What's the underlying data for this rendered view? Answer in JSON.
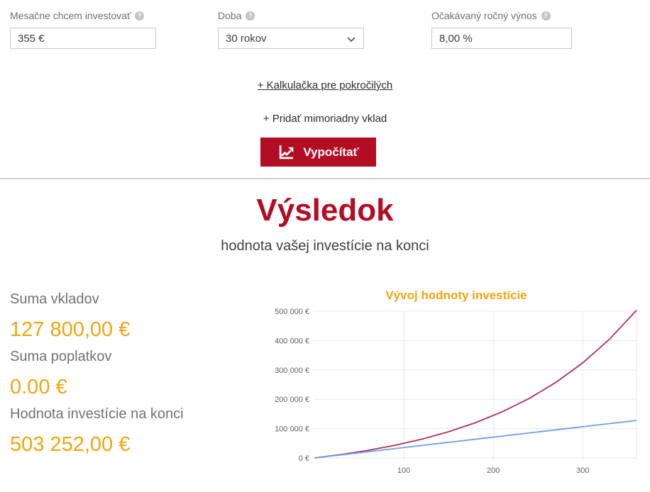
{
  "form": {
    "fields": [
      {
        "label": "Mesačne chcem investovať",
        "value": "355 €"
      },
      {
        "label": "Doba",
        "value": "30 rokov"
      },
      {
        "label": "Očakávaný ročný výnos",
        "value": "8,00 %"
      }
    ],
    "help_icon": "?",
    "advanced_link": "+ Kalkulačka pre pokročilých",
    "extra_deposit_label": "+ Pridať mimoriadny vklad",
    "calculate_label": "Vypočítať"
  },
  "result": {
    "title": "Výsledok",
    "subtitle": "hodnota vašej investície na konci",
    "stats": [
      {
        "label": "Suma vkladov",
        "value": "127 800,00 €"
      },
      {
        "label": "Suma poplatkov",
        "value": "0.00 €"
      },
      {
        "label": "Hodnota investície na konci",
        "value": "503 252,00 €"
      }
    ]
  },
  "colors": {
    "brand_red": "#b30d24",
    "accent_orange": "#f0a50f",
    "grid": "#e8e8e8",
    "axis_text": "#616161",
    "series_value": "#b03058",
    "series_deposits": "#6d9eeb"
  },
  "chart_data": {
    "type": "line",
    "title": "Vývoj hodnoty investície",
    "xlabel": "",
    "ylabel": "",
    "x": [
      0,
      30,
      60,
      90,
      120,
      150,
      180,
      210,
      240,
      270,
      300,
      330,
      360
    ],
    "series": [
      {
        "name": "Hodnota investície",
        "color": "#b03058",
        "values": [
          0,
          11700,
          25900,
          43150,
          64050,
          89400,
          120200,
          157500,
          202800,
          257700,
          324300,
          405100,
          503252
        ]
      },
      {
        "name": "Suma vkladov",
        "color": "#6d9eeb",
        "values": [
          0,
          10650,
          21300,
          31950,
          42600,
          53250,
          63900,
          74550,
          85200,
          95850,
          106500,
          117150,
          127800
        ]
      }
    ],
    "xlim": [
      0,
      360
    ],
    "ylim": [
      0,
      500000
    ],
    "xticks": [
      100,
      200,
      300
    ],
    "yticks": [
      0,
      100000,
      200000,
      300000,
      400000,
      500000
    ],
    "ytick_labels": [
      "0 €",
      "100 000 €",
      "200 000 €",
      "300 000 €",
      "400 000 €",
      "500 000 €"
    ],
    "grid": true,
    "legend": "none"
  }
}
